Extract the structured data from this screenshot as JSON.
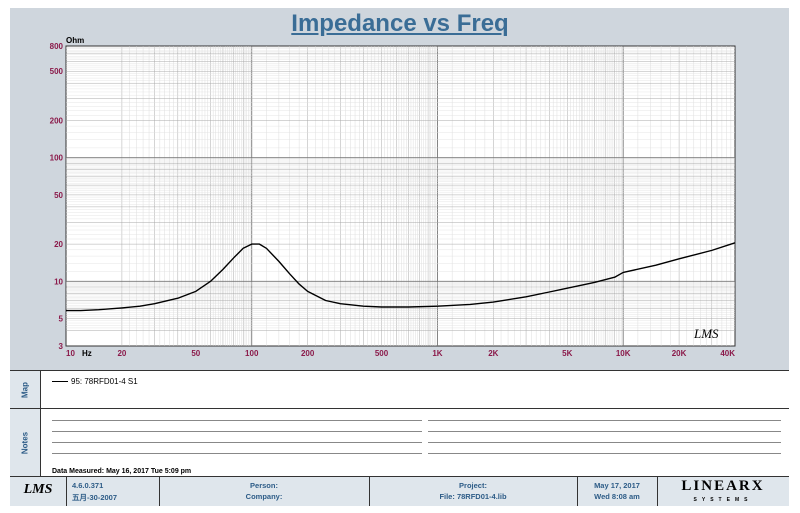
{
  "chart_data": {
    "type": "line",
    "title": "Impedance vs Freq",
    "y_unit": "Ohm",
    "x_unit": "Hz",
    "x_scale": "log",
    "y_scale": "log",
    "xlim": [
      10,
      40000
    ],
    "ylim": [
      3,
      800
    ],
    "x_ticks": [
      {
        "v": 10,
        "label": "10"
      },
      {
        "v": 20,
        "label": "20"
      },
      {
        "v": 50,
        "label": "50"
      },
      {
        "v": 100,
        "label": "100"
      },
      {
        "v": 200,
        "label": "200"
      },
      {
        "v": 500,
        "label": "500"
      },
      {
        "v": 1000,
        "label": "1K"
      },
      {
        "v": 2000,
        "label": "2K"
      },
      {
        "v": 5000,
        "label": "5K"
      },
      {
        "v": 10000,
        "label": "10K"
      },
      {
        "v": 20000,
        "label": "20K"
      },
      {
        "v": 40000,
        "label": "40K"
      }
    ],
    "y_ticks": [
      {
        "v": 3,
        "label": "3"
      },
      {
        "v": 5,
        "label": "5"
      },
      {
        "v": 10,
        "label": "10"
      },
      {
        "v": 20,
        "label": "20"
      },
      {
        "v": 50,
        "label": "50"
      },
      {
        "v": 100,
        "label": "100"
      },
      {
        "v": 200,
        "label": "200"
      },
      {
        "v": 500,
        "label": "500"
      },
      {
        "v": 800,
        "label": "800"
      }
    ],
    "grid": true,
    "series": [
      {
        "name": "95: 78RFD01-4 S1",
        "color": "#000000",
        "points": [
          [
            10,
            5.8
          ],
          [
            12,
            5.8
          ],
          [
            15,
            5.9
          ],
          [
            20,
            6.1
          ],
          [
            25,
            6.3
          ],
          [
            30,
            6.6
          ],
          [
            40,
            7.3
          ],
          [
            50,
            8.3
          ],
          [
            60,
            10.0
          ],
          [
            70,
            12.5
          ],
          [
            80,
            15.5
          ],
          [
            90,
            18.5
          ],
          [
            100,
            20.0
          ],
          [
            110,
            20.0
          ],
          [
            120,
            18.5
          ],
          [
            140,
            14.5
          ],
          [
            160,
            11.5
          ],
          [
            180,
            9.5
          ],
          [
            200,
            8.3
          ],
          [
            250,
            7.0
          ],
          [
            300,
            6.6
          ],
          [
            400,
            6.3
          ],
          [
            500,
            6.2
          ],
          [
            700,
            6.2
          ],
          [
            1000,
            6.3
          ],
          [
            1500,
            6.5
          ],
          [
            2000,
            6.8
          ],
          [
            3000,
            7.5
          ],
          [
            4000,
            8.2
          ],
          [
            5000,
            8.8
          ],
          [
            7000,
            9.8
          ],
          [
            9000,
            10.8
          ],
          [
            10000,
            11.8
          ],
          [
            15000,
            13.5
          ],
          [
            20000,
            15.2
          ],
          [
            30000,
            17.8
          ],
          [
            40000,
            20.5
          ]
        ]
      }
    ],
    "watermark": "LMS"
  },
  "map": {
    "tab": "Map",
    "entry": "95: 78RFD01-4 S1"
  },
  "notes": {
    "tab": "Notes",
    "measured": "Data Measured: May 16, 2017  Tue  5:09 pm"
  },
  "footer": {
    "logo": "LMS",
    "version": "4.6.0.371",
    "version_date": "五月-30-2007",
    "person_label": "Person:",
    "company_label": "Company:",
    "project_label": "Project:",
    "file_label": "File: 78RFD01-4.lib",
    "date": "May 17, 2017",
    "time": "Wed  8:08 am",
    "brand": "LINEARX",
    "brand_sub": "SYSTEMS"
  }
}
